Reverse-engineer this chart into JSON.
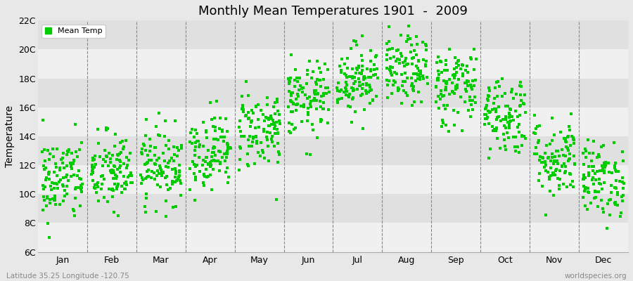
{
  "title": "Monthly Mean Temperatures 1901  -  2009",
  "ylabel": "Temperature",
  "subtitle_left": "Latitude 35.25 Longitude -120.75",
  "subtitle_right": "worldspecies.org",
  "legend_label": "Mean Temp",
  "marker_color": "#00cc00",
  "bg_color": "#e8e8e8",
  "band_color_light": "#f0f0f0",
  "band_color_dark": "#e0e0e0",
  "dashed_line_color": "#888888",
  "ylim": [
    6,
    22
  ],
  "ytick_values": [
    6,
    8,
    10,
    12,
    14,
    16,
    18,
    20,
    22
  ],
  "ytick_labels": [
    "6C",
    "8C",
    "10C",
    "12C",
    "14C",
    "16C",
    "18C",
    "20C",
    "22C"
  ],
  "months": [
    "Jan",
    "Feb",
    "Mar",
    "Apr",
    "May",
    "Jun",
    "Jul",
    "Aug",
    "Sep",
    "Oct",
    "Nov",
    "Dec"
  ],
  "month_means": [
    11.0,
    11.5,
    12.0,
    13.0,
    14.5,
    16.5,
    18.0,
    18.5,
    17.5,
    15.5,
    12.5,
    11.0
  ],
  "month_stds": [
    1.5,
    1.4,
    1.3,
    1.3,
    1.4,
    1.3,
    1.2,
    1.2,
    1.4,
    1.4,
    1.4,
    1.3
  ],
  "num_years": 109,
  "seed": 42,
  "marker_size": 5,
  "dpi": 100
}
